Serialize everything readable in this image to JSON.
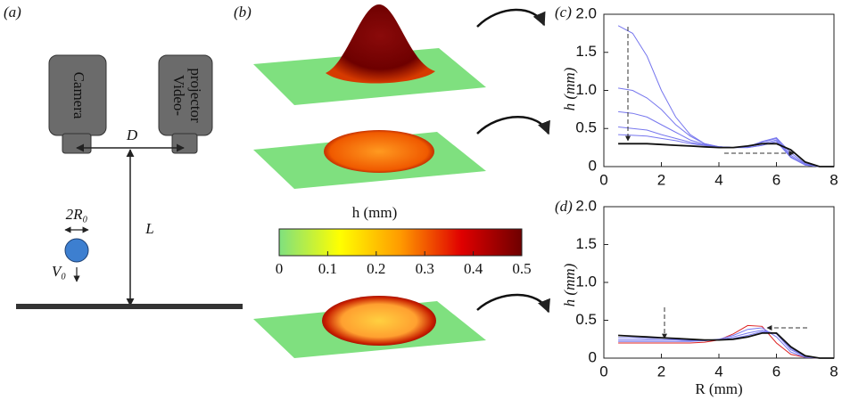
{
  "panel_labels": [
    "(a)",
    "(b)",
    "(c)",
    "(d)"
  ],
  "diagram": {
    "camera": "Camera",
    "projector": [
      "Video-",
      "projector"
    ],
    "D": "D",
    "L": "L",
    "diameter": "2R₀",
    "velocity": "V₀"
  },
  "colorbar": {
    "label": "h (mm)",
    "lim": [
      0,
      0.5
    ],
    "ticks": [
      0,
      0.1,
      0.2,
      0.3,
      0.4,
      0.5
    ],
    "colors": [
      "#7fe07f",
      "#ffff00",
      "#ff9a00",
      "#e00000",
      "#6e0000"
    ]
  },
  "chart_data": [
    {
      "type": "line",
      "ylabel": "h (mm)",
      "x": [
        0.5,
        1,
        1.5,
        2,
        2.5,
        3,
        3.5,
        4,
        4.5,
        5,
        5.5,
        6,
        6.5,
        7,
        7.5,
        8
      ],
      "series": [
        {
          "color": "#7777ee",
          "values": [
            1.85,
            1.75,
            1.45,
            1.0,
            0.65,
            0.42,
            0.3,
            0.26,
            0.25,
            0.25,
            0.28,
            0.33,
            0.12,
            0.02,
            0,
            0
          ]
        },
        {
          "color": "#7777ee",
          "values": [
            1.03,
            1.0,
            0.9,
            0.75,
            0.55,
            0.4,
            0.3,
            0.26,
            0.25,
            0.25,
            0.28,
            0.33,
            0.12,
            0.02,
            0,
            0
          ]
        },
        {
          "color": "#7777ee",
          "values": [
            0.72,
            0.7,
            0.65,
            0.55,
            0.45,
            0.35,
            0.29,
            0.26,
            0.25,
            0.26,
            0.3,
            0.35,
            0.13,
            0.02,
            0,
            0
          ]
        },
        {
          "color": "#7777ee",
          "values": [
            0.52,
            0.5,
            0.48,
            0.42,
            0.37,
            0.32,
            0.28,
            0.26,
            0.25,
            0.26,
            0.32,
            0.37,
            0.15,
            0.03,
            0,
            0
          ]
        },
        {
          "color": "#7777ee",
          "values": [
            0.42,
            0.41,
            0.4,
            0.37,
            0.34,
            0.3,
            0.28,
            0.26,
            0.25,
            0.26,
            0.33,
            0.38,
            0.18,
            0.04,
            0,
            0
          ]
        },
        {
          "color": "#111111",
          "values": [
            0.3,
            0.3,
            0.3,
            0.29,
            0.28,
            0.27,
            0.26,
            0.25,
            0.25,
            0.27,
            0.3,
            0.3,
            0.22,
            0.06,
            0,
            0
          ]
        }
      ],
      "xlim": [
        0,
        8
      ],
      "xticks": [
        0,
        2,
        4,
        6,
        8
      ],
      "ylim": [
        0,
        2
      ],
      "yticks": [
        0,
        0.5,
        {
          "value": 1,
          "label": "1.0"
        },
        1.5,
        {
          "value": 2,
          "label": "2.0"
        }
      ]
    },
    {
      "type": "line",
      "ylabel": "h (mm)",
      "xlabel": "R (mm)",
      "x": [
        0.5,
        1,
        1.5,
        2,
        2.5,
        3,
        3.5,
        4,
        4.5,
        5,
        5.5,
        6,
        6.5,
        7,
        7.5,
        8
      ],
      "series": [
        {
          "color": "#dd2222",
          "values": [
            0.2,
            0.2,
            0.2,
            0.2,
            0.2,
            0.2,
            0.21,
            0.24,
            0.32,
            0.43,
            0.42,
            0.2,
            0.05,
            0.01,
            0,
            0
          ]
        },
        {
          "color": "#7777ee",
          "values": [
            0.22,
            0.22,
            0.22,
            0.22,
            0.22,
            0.22,
            0.23,
            0.25,
            0.3,
            0.38,
            0.4,
            0.28,
            0.08,
            0.01,
            0,
            0
          ]
        },
        {
          "color": "#7777ee",
          "values": [
            0.24,
            0.24,
            0.24,
            0.24,
            0.24,
            0.23,
            0.23,
            0.24,
            0.28,
            0.33,
            0.37,
            0.32,
            0.11,
            0.02,
            0,
            0
          ]
        },
        {
          "color": "#7777ee",
          "values": [
            0.27,
            0.27,
            0.26,
            0.26,
            0.25,
            0.24,
            0.24,
            0.24,
            0.26,
            0.3,
            0.35,
            0.33,
            0.13,
            0.02,
            0,
            0
          ]
        },
        {
          "color": "#111111",
          "values": [
            0.3,
            0.29,
            0.28,
            0.27,
            0.26,
            0.25,
            0.24,
            0.24,
            0.25,
            0.28,
            0.33,
            0.33,
            0.15,
            0.03,
            0,
            0
          ]
        }
      ],
      "xlim": [
        0,
        8
      ],
      "xticks": [
        0,
        2,
        4,
        6,
        8
      ],
      "ylim": [
        0,
        2
      ],
      "yticks": [
        0,
        0.5,
        {
          "value": 1,
          "label": "1.0"
        },
        1.5,
        {
          "value": 2,
          "label": "2.0"
        }
      ]
    }
  ]
}
